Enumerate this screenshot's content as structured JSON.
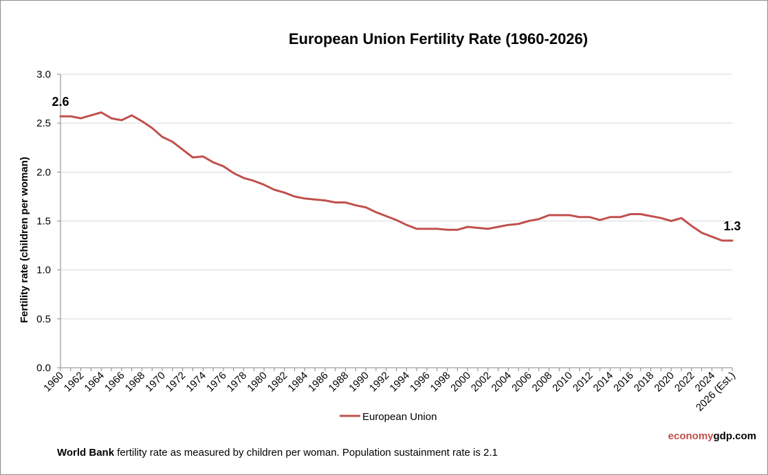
{
  "title": "European Union Fertility Rate (1960-2026)",
  "footer": {
    "bold": "World Bank",
    "text": " fertility rate as measured by children per woman.  Population sustainment rate is 2.1"
  },
  "brand": {
    "part1": "economy",
    "part2": "gdp.com"
  },
  "colors": {
    "line": "#c0504d",
    "grid": "#d9d9d9",
    "axis": "#868686"
  },
  "chart_data": {
    "type": "line",
    "title": "European Union Fertility Rate (1960-2026)",
    "xlabel": "",
    "ylabel": "Fertility rate (children per woman)",
    "ylim": [
      0,
      3.0
    ],
    "yticks": [
      "0.0",
      "0.5",
      "1.0",
      "1.5",
      "2.0",
      "2.5",
      "3.0"
    ],
    "grid": true,
    "legend_position": "bottom",
    "categories": [
      "1960",
      "1961",
      "1962",
      "1963",
      "1964",
      "1965",
      "1966",
      "1967",
      "1968",
      "1969",
      "1970",
      "1971",
      "1972",
      "1973",
      "1974",
      "1975",
      "1976",
      "1977",
      "1978",
      "1979",
      "1980",
      "1981",
      "1982",
      "1983",
      "1984",
      "1985",
      "1986",
      "1987",
      "1988",
      "1989",
      "1990",
      "1991",
      "1992",
      "1993",
      "1994",
      "1995",
      "1996",
      "1997",
      "1998",
      "1999",
      "2000",
      "2001",
      "2002",
      "2003",
      "2004",
      "2005",
      "2006",
      "2007",
      "2008",
      "2009",
      "2010",
      "2011",
      "2012",
      "2013",
      "2014",
      "2015",
      "2016",
      "2017",
      "2018",
      "2019",
      "2020",
      "2021",
      "2022",
      "2023",
      "2024",
      "2025",
      "2026 (Est.)"
    ],
    "tick_labels": [
      "1960",
      "1962",
      "1964",
      "1966",
      "1968",
      "1970",
      "1972",
      "1974",
      "1976",
      "1978",
      "1980",
      "1982",
      "1984",
      "1986",
      "1988",
      "1990",
      "1992",
      "1994",
      "1996",
      "1998",
      "2000",
      "2002",
      "2004",
      "2006",
      "2008",
      "2010",
      "2012",
      "2014",
      "2016",
      "2018",
      "2020",
      "2022",
      "2024",
      "2026 (Est.)"
    ],
    "series": [
      {
        "name": "European Union",
        "values": [
          2.57,
          2.57,
          2.55,
          2.58,
          2.61,
          2.55,
          2.53,
          2.58,
          2.52,
          2.45,
          2.36,
          2.31,
          2.23,
          2.15,
          2.16,
          2.1,
          2.06,
          1.99,
          1.94,
          1.91,
          1.87,
          1.82,
          1.79,
          1.75,
          1.73,
          1.72,
          1.71,
          1.69,
          1.69,
          1.66,
          1.64,
          1.59,
          1.55,
          1.51,
          1.46,
          1.42,
          1.42,
          1.42,
          1.41,
          1.41,
          1.44,
          1.43,
          1.42,
          1.44,
          1.46,
          1.47,
          1.5,
          1.52,
          1.56,
          1.56,
          1.56,
          1.54,
          1.54,
          1.51,
          1.54,
          1.54,
          1.57,
          1.57,
          1.55,
          1.53,
          1.5,
          1.53,
          1.45,
          1.38,
          1.34,
          1.3,
          1.3
        ]
      }
    ],
    "annotations": [
      {
        "label": "2.6",
        "at": "1960"
      },
      {
        "label": "1.3",
        "at": "2026 (Est.)"
      }
    ]
  }
}
